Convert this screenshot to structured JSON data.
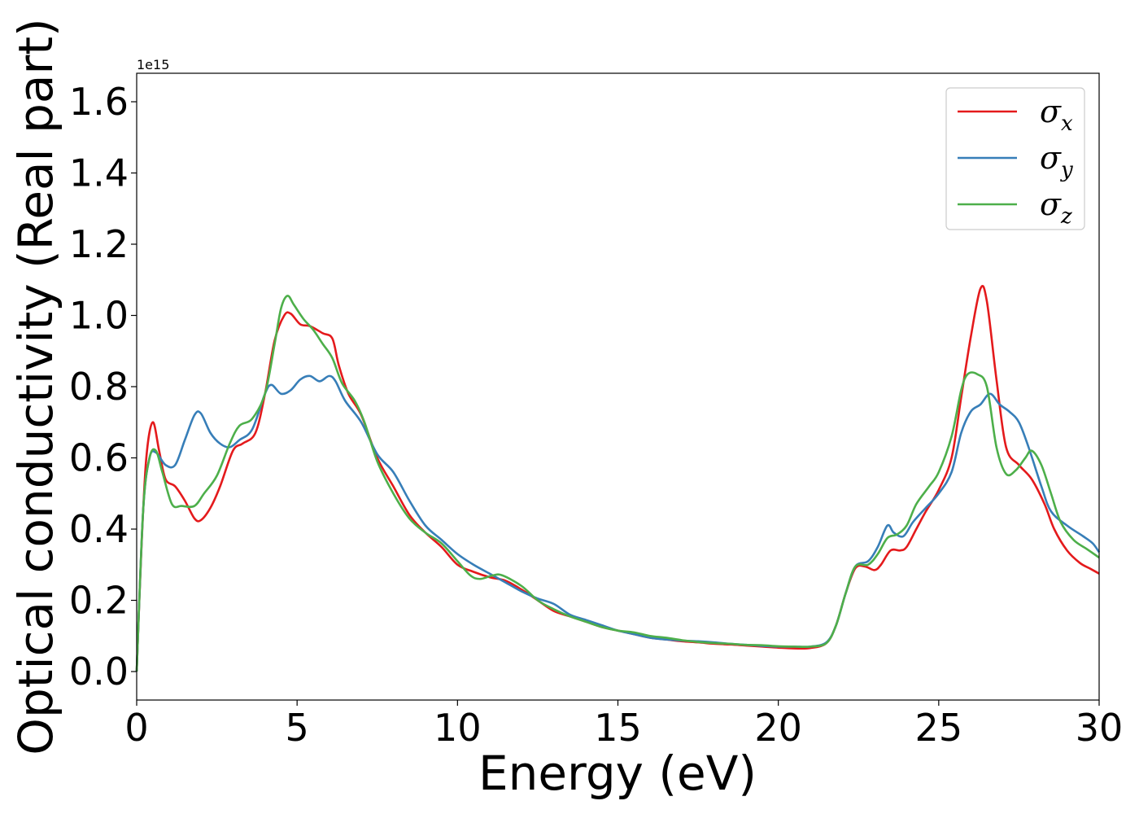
{
  "chart_data": {
    "type": "line",
    "title": "",
    "xlabel": "Energy (eV)",
    "ylabel": "Optical conductivity (Real part)",
    "y_offset_label": "1e15",
    "xlim": [
      0,
      30
    ],
    "ylim": [
      -0.08,
      1.68
    ],
    "xticks": [
      0,
      5,
      10,
      15,
      20,
      25,
      30
    ],
    "xtick_labels": [
      "0",
      "5",
      "10",
      "15",
      "20",
      "25",
      "30"
    ],
    "yticks": [
      0.0,
      0.2,
      0.4,
      0.6,
      0.8,
      1.0,
      1.2,
      1.4,
      1.6
    ],
    "ytick_labels": [
      "0.0",
      "0.2",
      "0.4",
      "0.6",
      "0.8",
      "1.0",
      "1.2",
      "1.4",
      "1.6"
    ],
    "grid": false,
    "legend_position": "top-right",
    "series": [
      {
        "name": "σx",
        "label_base": "σ",
        "label_sub": "x",
        "color": "#e41a1c",
        "points": [
          [
            0,
            0.0
          ],
          [
            0.15,
            0.35
          ],
          [
            0.3,
            0.6
          ],
          [
            0.5,
            0.7
          ],
          [
            0.7,
            0.62
          ],
          [
            0.9,
            0.54
          ],
          [
            1.2,
            0.52
          ],
          [
            1.5,
            0.48
          ],
          [
            1.8,
            0.43
          ],
          [
            2.0,
            0.425
          ],
          [
            2.3,
            0.46
          ],
          [
            2.6,
            0.52
          ],
          [
            3.0,
            0.62
          ],
          [
            3.3,
            0.64
          ],
          [
            3.7,
            0.67
          ],
          [
            4.0,
            0.78
          ],
          [
            4.3,
            0.93
          ],
          [
            4.6,
            1.0
          ],
          [
            4.8,
            1.005
          ],
          [
            5.1,
            0.975
          ],
          [
            5.4,
            0.97
          ],
          [
            5.8,
            0.95
          ],
          [
            6.1,
            0.935
          ],
          [
            6.3,
            0.86
          ],
          [
            6.6,
            0.78
          ],
          [
            7.0,
            0.72
          ],
          [
            7.5,
            0.6
          ],
          [
            8.0,
            0.52
          ],
          [
            8.5,
            0.44
          ],
          [
            9.0,
            0.39
          ],
          [
            9.5,
            0.35
          ],
          [
            10.0,
            0.3
          ],
          [
            10.5,
            0.28
          ],
          [
            11.0,
            0.265
          ],
          [
            11.5,
            0.255
          ],
          [
            12.0,
            0.23
          ],
          [
            12.5,
            0.2
          ],
          [
            13.0,
            0.17
          ],
          [
            13.5,
            0.155
          ],
          [
            14.0,
            0.14
          ],
          [
            14.5,
            0.125
          ],
          [
            15.0,
            0.115
          ],
          [
            15.5,
            0.105
          ],
          [
            16.0,
            0.095
          ],
          [
            16.5,
            0.09
          ],
          [
            17.0,
            0.085
          ],
          [
            17.5,
            0.082
          ],
          [
            18.0,
            0.078
          ],
          [
            18.5,
            0.076
          ],
          [
            19.0,
            0.073
          ],
          [
            19.5,
            0.07
          ],
          [
            20.0,
            0.067
          ],
          [
            20.5,
            0.065
          ],
          [
            21.0,
            0.066
          ],
          [
            21.5,
            0.08
          ],
          [
            21.8,
            0.13
          ],
          [
            22.1,
            0.22
          ],
          [
            22.4,
            0.29
          ],
          [
            22.7,
            0.295
          ],
          [
            23.0,
            0.285
          ],
          [
            23.2,
            0.3
          ],
          [
            23.5,
            0.34
          ],
          [
            23.8,
            0.34
          ],
          [
            24.0,
            0.35
          ],
          [
            24.3,
            0.4
          ],
          [
            24.6,
            0.45
          ],
          [
            25.0,
            0.51
          ],
          [
            25.4,
            0.6
          ],
          [
            25.7,
            0.77
          ],
          [
            26.0,
            0.94
          ],
          [
            26.3,
            1.075
          ],
          [
            26.5,
            1.04
          ],
          [
            26.8,
            0.82
          ],
          [
            27.1,
            0.63
          ],
          [
            27.5,
            0.58
          ],
          [
            27.9,
            0.54
          ],
          [
            28.3,
            0.47
          ],
          [
            28.6,
            0.4
          ],
          [
            29.0,
            0.34
          ],
          [
            29.4,
            0.305
          ],
          [
            29.7,
            0.29
          ],
          [
            30.0,
            0.275
          ]
        ]
      },
      {
        "name": "σy",
        "label_base": "σ",
        "label_sub": "y",
        "color": "#377eb8",
        "points": [
          [
            0,
            0.0
          ],
          [
            0.2,
            0.45
          ],
          [
            0.4,
            0.6
          ],
          [
            0.6,
            0.615
          ],
          [
            0.9,
            0.58
          ],
          [
            1.2,
            0.58
          ],
          [
            1.5,
            0.65
          ],
          [
            1.8,
            0.72
          ],
          [
            2.0,
            0.725
          ],
          [
            2.3,
            0.67
          ],
          [
            2.6,
            0.64
          ],
          [
            2.9,
            0.63
          ],
          [
            3.2,
            0.65
          ],
          [
            3.6,
            0.68
          ],
          [
            4.0,
            0.78
          ],
          [
            4.2,
            0.805
          ],
          [
            4.5,
            0.78
          ],
          [
            4.8,
            0.79
          ],
          [
            5.1,
            0.82
          ],
          [
            5.4,
            0.83
          ],
          [
            5.7,
            0.815
          ],
          [
            6.0,
            0.83
          ],
          [
            6.2,
            0.815
          ],
          [
            6.5,
            0.76
          ],
          [
            7.0,
            0.7
          ],
          [
            7.5,
            0.61
          ],
          [
            8.0,
            0.56
          ],
          [
            8.5,
            0.48
          ],
          [
            9.0,
            0.41
          ],
          [
            9.5,
            0.37
          ],
          [
            10.0,
            0.33
          ],
          [
            10.5,
            0.3
          ],
          [
            11.0,
            0.275
          ],
          [
            11.5,
            0.25
          ],
          [
            12.0,
            0.225
          ],
          [
            12.5,
            0.205
          ],
          [
            13.0,
            0.19
          ],
          [
            13.5,
            0.16
          ],
          [
            14.0,
            0.145
          ],
          [
            14.5,
            0.13
          ],
          [
            15.0,
            0.115
          ],
          [
            15.5,
            0.105
          ],
          [
            16.0,
            0.095
          ],
          [
            16.5,
            0.09
          ],
          [
            17.0,
            0.087
          ],
          [
            17.5,
            0.085
          ],
          [
            18.0,
            0.082
          ],
          [
            18.5,
            0.078
          ],
          [
            19.0,
            0.075
          ],
          [
            19.5,
            0.072
          ],
          [
            20.0,
            0.07
          ],
          [
            20.5,
            0.07
          ],
          [
            21.0,
            0.07
          ],
          [
            21.5,
            0.082
          ],
          [
            21.8,
            0.13
          ],
          [
            22.1,
            0.22
          ],
          [
            22.4,
            0.295
          ],
          [
            22.8,
            0.31
          ],
          [
            23.1,
            0.35
          ],
          [
            23.4,
            0.41
          ],
          [
            23.6,
            0.39
          ],
          [
            23.9,
            0.38
          ],
          [
            24.2,
            0.42
          ],
          [
            24.6,
            0.46
          ],
          [
            25.0,
            0.5
          ],
          [
            25.4,
            0.56
          ],
          [
            25.7,
            0.67
          ],
          [
            26.0,
            0.73
          ],
          [
            26.3,
            0.75
          ],
          [
            26.6,
            0.78
          ],
          [
            26.9,
            0.75
          ],
          [
            27.2,
            0.73
          ],
          [
            27.5,
            0.7
          ],
          [
            27.8,
            0.63
          ],
          [
            28.2,
            0.52
          ],
          [
            28.5,
            0.45
          ],
          [
            29.0,
            0.41
          ],
          [
            29.5,
            0.38
          ],
          [
            29.8,
            0.36
          ],
          [
            30.0,
            0.335
          ]
        ]
      },
      {
        "name": "σz",
        "label_base": "σ",
        "label_sub": "z",
        "color": "#4daf4a",
        "points": [
          [
            0,
            0.0
          ],
          [
            0.2,
            0.45
          ],
          [
            0.4,
            0.6
          ],
          [
            0.6,
            0.62
          ],
          [
            0.8,
            0.56
          ],
          [
            1.1,
            0.47
          ],
          [
            1.4,
            0.465
          ],
          [
            1.8,
            0.465
          ],
          [
            2.1,
            0.5
          ],
          [
            2.5,
            0.55
          ],
          [
            2.9,
            0.64
          ],
          [
            3.2,
            0.69
          ],
          [
            3.6,
            0.71
          ],
          [
            4.0,
            0.78
          ],
          [
            4.3,
            0.92
          ],
          [
            4.5,
            1.02
          ],
          [
            4.7,
            1.055
          ],
          [
            4.9,
            1.03
          ],
          [
            5.2,
            0.99
          ],
          [
            5.5,
            0.96
          ],
          [
            5.8,
            0.92
          ],
          [
            6.1,
            0.88
          ],
          [
            6.4,
            0.81
          ],
          [
            6.8,
            0.76
          ],
          [
            7.1,
            0.7
          ],
          [
            7.5,
            0.59
          ],
          [
            8.0,
            0.5
          ],
          [
            8.5,
            0.43
          ],
          [
            9.0,
            0.39
          ],
          [
            9.5,
            0.36
          ],
          [
            10.0,
            0.31
          ],
          [
            10.4,
            0.27
          ],
          [
            10.7,
            0.26
          ],
          [
            11.1,
            0.27
          ],
          [
            11.4,
            0.27
          ],
          [
            12.0,
            0.24
          ],
          [
            12.5,
            0.2
          ],
          [
            13.0,
            0.175
          ],
          [
            13.5,
            0.155
          ],
          [
            14.0,
            0.14
          ],
          [
            14.5,
            0.125
          ],
          [
            15.0,
            0.115
          ],
          [
            15.5,
            0.11
          ],
          [
            16.0,
            0.1
          ],
          [
            16.5,
            0.095
          ],
          [
            17.0,
            0.088
          ],
          [
            17.5,
            0.083
          ],
          [
            18.0,
            0.08
          ],
          [
            18.5,
            0.078
          ],
          [
            19.0,
            0.075
          ],
          [
            19.5,
            0.074
          ],
          [
            20.0,
            0.071
          ],
          [
            20.5,
            0.07
          ],
          [
            21.0,
            0.07
          ],
          [
            21.5,
            0.08
          ],
          [
            21.8,
            0.13
          ],
          [
            22.1,
            0.22
          ],
          [
            22.4,
            0.295
          ],
          [
            22.8,
            0.3
          ],
          [
            23.1,
            0.33
          ],
          [
            23.4,
            0.375
          ],
          [
            23.7,
            0.385
          ],
          [
            24.0,
            0.41
          ],
          [
            24.3,
            0.47
          ],
          [
            24.7,
            0.52
          ],
          [
            25.0,
            0.56
          ],
          [
            25.4,
            0.66
          ],
          [
            25.7,
            0.79
          ],
          [
            25.9,
            0.835
          ],
          [
            26.2,
            0.835
          ],
          [
            26.5,
            0.8
          ],
          [
            26.8,
            0.63
          ],
          [
            27.1,
            0.555
          ],
          [
            27.4,
            0.565
          ],
          [
            27.7,
            0.6
          ],
          [
            27.9,
            0.62
          ],
          [
            28.2,
            0.58
          ],
          [
            28.5,
            0.5
          ],
          [
            28.8,
            0.42
          ],
          [
            29.2,
            0.37
          ],
          [
            29.6,
            0.345
          ],
          [
            30.0,
            0.32
          ]
        ]
      }
    ]
  }
}
